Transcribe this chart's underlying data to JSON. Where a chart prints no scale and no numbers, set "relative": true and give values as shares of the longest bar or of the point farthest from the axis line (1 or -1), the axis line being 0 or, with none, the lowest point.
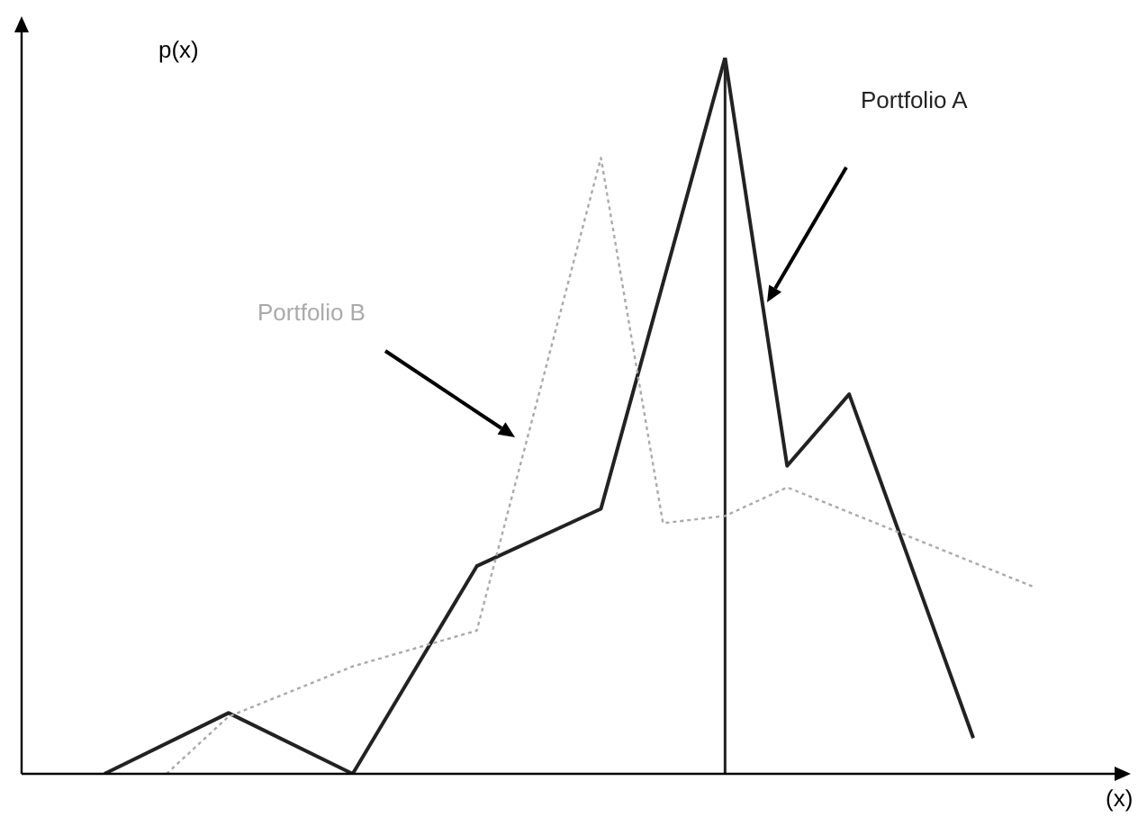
{
  "chart_data": {
    "type": "line",
    "relative": true,
    "ylabel": "p(x)",
    "xlabel": "(x)",
    "categories": [
      null,
      null,
      null,
      null,
      null,
      null,
      null,
      null,
      null,
      null,
      null,
      null,
      null,
      null,
      null,
      null
    ],
    "series": [
      {
        "name": "Portfolio A",
        "color": "#222222",
        "line_style": "solid",
        "values": [
          0,
          null,
          0.085,
          null,
          0,
          null,
          0.29,
          null,
          0.37,
          null,
          1,
          0.43,
          0.53,
          null,
          0.05,
          null
        ]
      },
      {
        "name": "Portfolio B",
        "color": "#aaaaaa",
        "line_style": "dotted",
        "values": [
          null,
          0,
          0.08,
          null,
          0.15,
          null,
          0.2,
          null,
          0.86,
          0.35,
          0.36,
          0.4,
          null,
          null,
          null,
          0.26
        ]
      }
    ],
    "legend": false,
    "marker": "none",
    "grid": false
  }
}
